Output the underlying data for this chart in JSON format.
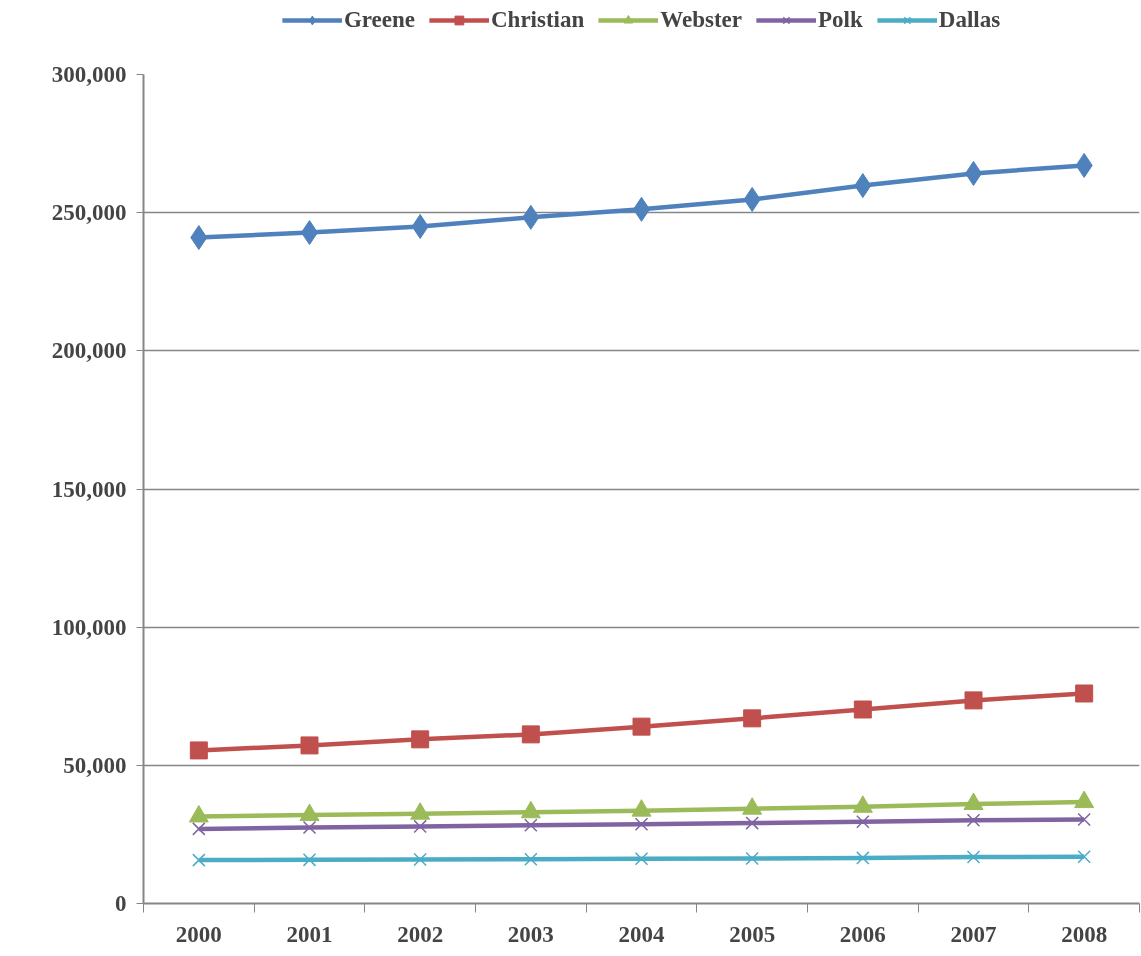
{
  "chart_data": {
    "type": "line",
    "categories": [
      "2000",
      "2001",
      "2002",
      "2003",
      "2004",
      "2005",
      "2006",
      "2007",
      "2008"
    ],
    "series": [
      {
        "name": "Greene",
        "color": "#4f81bd",
        "marker": "diamond",
        "values": [
          241000,
          242800,
          245000,
          248300,
          251200,
          254800,
          259800,
          264200,
          267100
        ]
      },
      {
        "name": "Christian",
        "color": "#c0504d",
        "marker": "square",
        "values": [
          55400,
          57200,
          59400,
          61200,
          64000,
          67000,
          70200,
          73500,
          76000
        ]
      },
      {
        "name": "Webster",
        "color": "#9bbb59",
        "marker": "triangle",
        "values": [
          31500,
          32000,
          32500,
          33000,
          33600,
          34300,
          35000,
          36000,
          36700
        ]
      },
      {
        "name": "Polk",
        "color": "#8064a2",
        "marker": "cross",
        "values": [
          27000,
          27500,
          27900,
          28300,
          28700,
          29100,
          29600,
          30100,
          30400
        ]
      },
      {
        "name": "Dallas",
        "color": "#4bacc6",
        "marker": "cross",
        "values": [
          15700,
          15800,
          15900,
          16000,
          16200,
          16300,
          16500,
          16800,
          16900
        ]
      }
    ],
    "ylim": [
      0,
      300000
    ],
    "yticks": [
      {
        "value": 0,
        "label": "0"
      },
      {
        "value": 50000,
        "label": "50,000"
      },
      {
        "value": 100000,
        "label": "100,000"
      },
      {
        "value": 150000,
        "label": "150,000"
      },
      {
        "value": 200000,
        "label": "200,000"
      },
      {
        "value": 250000,
        "label": "250,000"
      },
      {
        "value": 300000,
        "label": "300,000"
      }
    ],
    "grid": "y",
    "legend": "top",
    "line_style": "solid"
  }
}
